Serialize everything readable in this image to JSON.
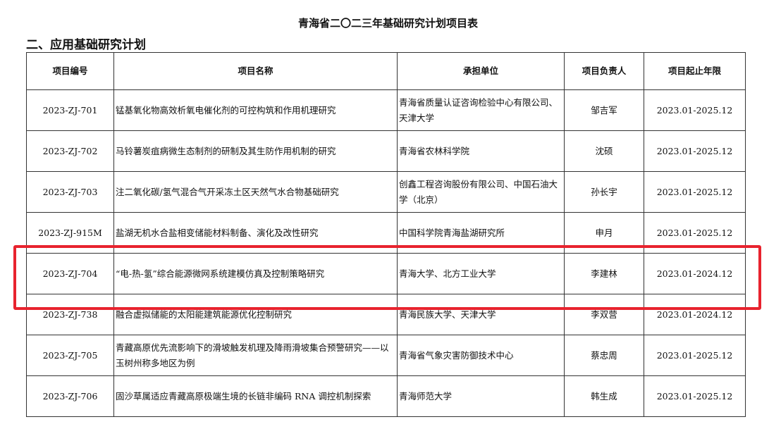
{
  "title": "青海省二〇二三年基础研究计划项目表",
  "section": "二、应用基础研究计划",
  "columns": [
    "项目编号",
    "项目名称",
    "承担单位",
    "项目负责人",
    "项目起止年限"
  ],
  "rows": [
    {
      "id": "2023-ZJ-701",
      "name": "锰基氧化物高效析氧电催化剂的可控构筑和作用机理研究",
      "unit": "青海省质量认证咨询检验中心有限公司、天津大学",
      "leader": "邹吉军",
      "period": "2023.01-2025.12"
    },
    {
      "id": "2023-ZJ-702",
      "name": "马铃薯炭疽病微生态制剂的研制及其生防作用机制的研究",
      "unit": "青海省农林科学院",
      "leader": "沈硕",
      "period": "2023.01-2025.12"
    },
    {
      "id": "2023-ZJ-703",
      "name": "注二氧化碳/氢气混合气开采冻土区天然气水合物基础研究",
      "unit": "创鑫工程咨询股份有限公司、中国石油大学（北京）",
      "leader": "孙长宇",
      "period": "2023.01-2025.12"
    },
    {
      "id": "2023-ZJ-915M",
      "name": "盐湖无机水合盐相变储能材料制备、演化及改性研究",
      "unit": "中国科学院青海盐湖研究所",
      "leader": "申月",
      "period": "2023.01-2025.12"
    },
    {
      "id": "2023-ZJ-704",
      "name": "“电-热-氢”综合能源微网系统建模仿真及控制策略研究",
      "unit": "青海大学、北方工业大学",
      "leader": "李建林",
      "period": "2023.01-2024.12"
    },
    {
      "id": "2023-ZJ-738",
      "name": "融合虚拟储能的太阳能建筑能源优化控制研究",
      "unit": "青海民族大学、天津大学",
      "leader": "李双营",
      "period": "2023.01-2024.12"
    },
    {
      "id": "2023-ZJ-705",
      "name": "青藏高原优先流影响下的滑坡触发机理及降雨滑坡集合预警研究——以玉树州称多地区为例",
      "unit": "青海省气象灾害防御技术中心",
      "leader": "蔡忠周",
      "period": "2023.01-2025.12"
    },
    {
      "id": "2023-ZJ-706",
      "name": "固沙草属适应青藏高原极端生境的长链非编码 RNA 调控机制探索",
      "unit": "青海师范大学",
      "leader": "韩生成",
      "period": "2023.01-2025.12"
    }
  ],
  "highlight_color": "#e8232e"
}
